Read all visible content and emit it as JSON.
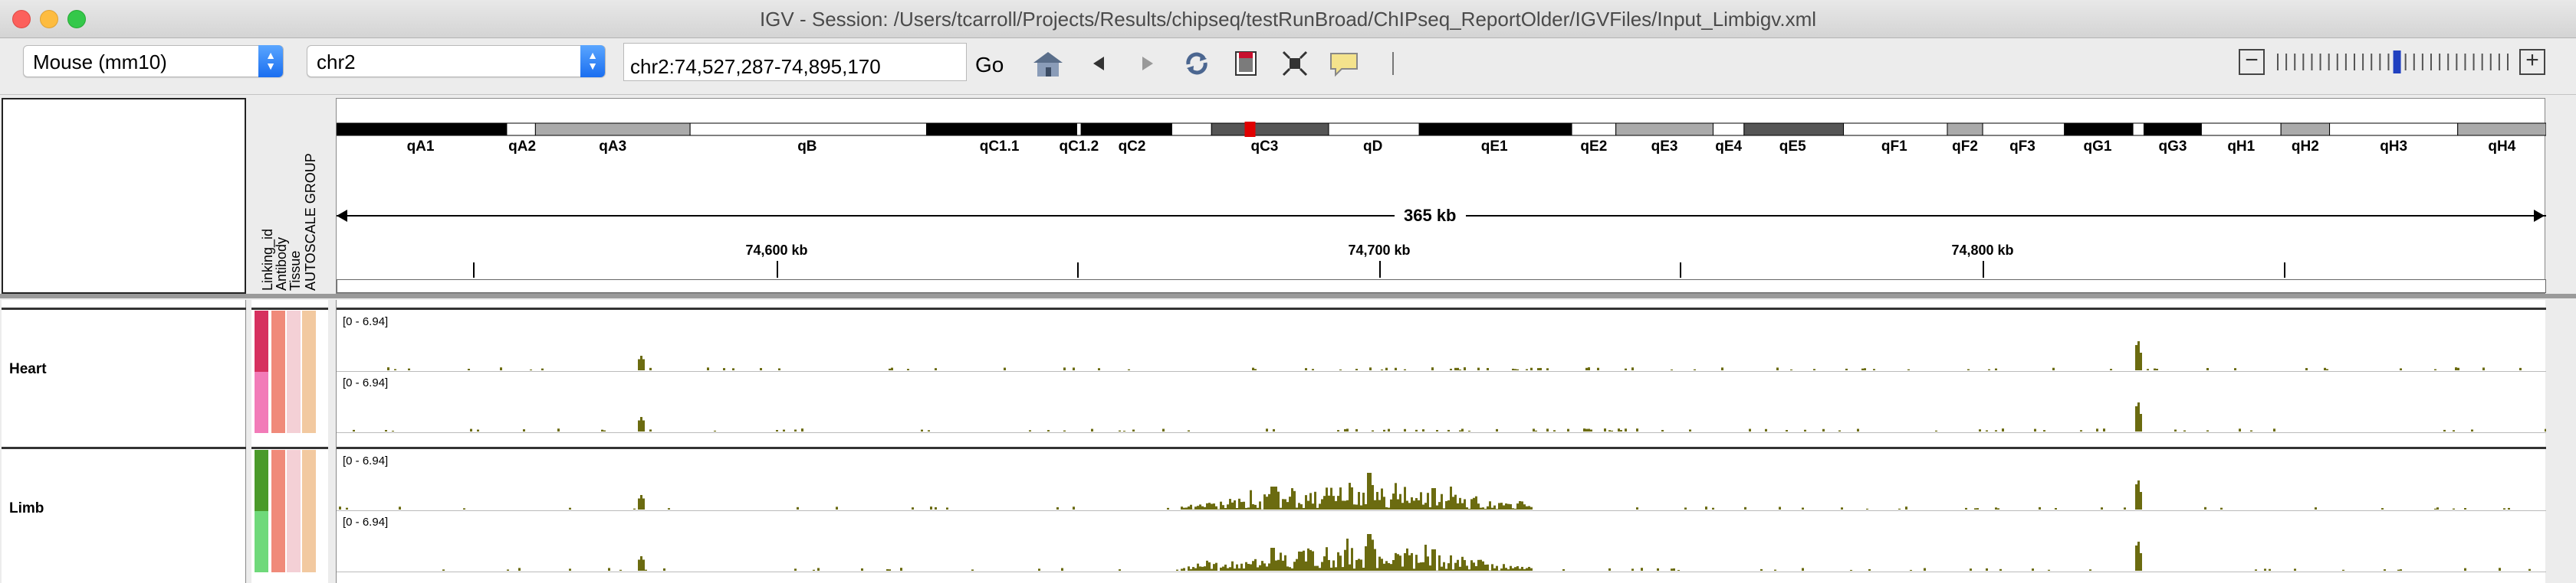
{
  "window": {
    "title": "IGV - Session: /Users/tcarroll/Projects/Results/chipseq/testRunBroad/ChIPseq_ReportOlder/IGVFiles/Input_Limbigv.xml"
  },
  "toolbar": {
    "genome": "Mouse (mm10)",
    "chromosome": "chr2",
    "locus": "chr2:74,527,287-74,895,170",
    "go_label": "Go",
    "icons": [
      "home-icon",
      "back-arrow-icon",
      "forward-arrow-icon",
      "refresh-icon",
      "roi-icon",
      "resize-icon",
      "popup-info-icon"
    ],
    "zoom": {
      "minus": "−",
      "plus": "+",
      "level_fraction": 0.5
    }
  },
  "attributes": {
    "headers": [
      "Linking_id",
      "Antibody",
      "Tissue",
      "AUTOSCALE GROUP"
    ]
  },
  "ideogram": {
    "bands": [
      "qA1",
      "qA2",
      "qA3",
      "qB",
      "qC1.1",
      "qC1.2",
      "qC2",
      "qC3",
      "qD",
      "qE1",
      "qE2",
      "qE3",
      "qE4",
      "qE5",
      "qF1",
      "qF2",
      "qF3",
      "qG1",
      "qG3",
      "qH1",
      "qH2",
      "qH3",
      "qH4"
    ]
  },
  "ruler": {
    "span": "365 kb",
    "ticks": [
      "74,600 kb",
      "74,700 kb",
      "74,800 kb"
    ]
  },
  "tracks": {
    "groups": [
      {
        "name": "Heart",
        "tracks": [
          {
            "range": "[0 - 6.94]",
            "color": "#d6305f"
          },
          {
            "range": "[0 - 6.94]",
            "color": "#f27bb8"
          }
        ]
      },
      {
        "name": "Limb",
        "tracks": [
          {
            "range": "[0 - 6.94]",
            "color": "#4a9a2a"
          },
          {
            "range": "[0 - 6.94]",
            "color": "#6fd97a"
          }
        ]
      }
    ],
    "signal_color": "#6b6b10"
  }
}
